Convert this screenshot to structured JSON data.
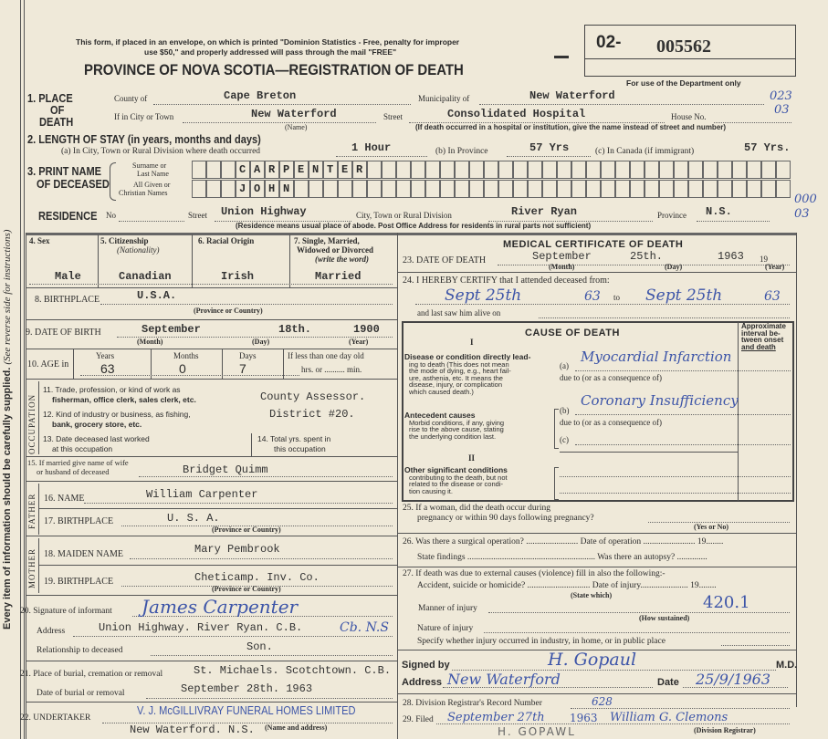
{
  "header": {
    "mail_notice_1": "This form, if placed in an envelope, on which is printed \"Dominion Statistics - Free, penalty for improper",
    "mail_notice_2": "use $50,\" and properly addressed will pass through the mail \"FREE\"",
    "title": "PROVINCE OF NOVA SCOTIA—REGISTRATION OF DEATH",
    "registration_prefix": "02-",
    "registration_number": "005562",
    "dept_only": "For use of the Department only",
    "dept_code_1a": "023",
    "dept_code_1b": "03",
    "dept_code_2a": "000",
    "dept_code_2b": "03"
  },
  "margin": {
    "instruction": "Every item of information should be carefully supplied.",
    "see_reverse": "(See reverse side for instructions)"
  },
  "place_of_death": {
    "label_num": "1. PLACE",
    "label_of": "OF",
    "label_death": "DEATH",
    "county_label": "County of",
    "county": "Cape Breton",
    "municipality_label": "Municipality of",
    "municipality": "New Waterford",
    "city_label": "If in City or Town",
    "city": "New Waterford",
    "name_note": "(Name)",
    "street_label": "Street",
    "street": "Consolidated Hospital",
    "house_label": "House No.",
    "hospital_note": "(If death occurred in a hospital or institution, give the name instead of street and number)"
  },
  "length_of_stay": {
    "label": "2. LENGTH OF STAY (in years, months and days)",
    "a_label": "(a) In City, Town or Rural Division where death occurred",
    "a_value": "1 Hour",
    "b_label": "(b) In Province",
    "b_value": "57 Yrs",
    "c_label": "(c) In Canada (if immigrant)",
    "c_value": "57 Yrs."
  },
  "name": {
    "label_1": "3. PRINT NAME",
    "label_2": "OF DECEASED",
    "surname_label_1": "Surname or",
    "surname_label_2": "Last Name",
    "given_label_1": "All Given or",
    "given_label_2": "Christian Names",
    "surname": "CARPENTER",
    "given": "JOHN"
  },
  "residence": {
    "label": "RESIDENCE",
    "no_label": "No",
    "street_label": "Street",
    "street": "Union Highway",
    "city_label": "City, Town or Rural Division",
    "city": "River Ryan",
    "province_label": "Province",
    "province": "N.S.",
    "note": "(Residence means usual place of abode. Post Office Address for residents in rural parts not sufficient)"
  },
  "personal": {
    "sex_label": "4. Sex",
    "sex": "Male",
    "citizenship_label": "5. Citizenship",
    "citizenship_sub": "(Nationality)",
    "citizenship": "Canadian",
    "racial_label": "6. Racial Origin",
    "racial": "Irish",
    "marital_label_1": "7. Single, Married,",
    "marital_label_2": "Widowed or Divorced",
    "marital_label_3": "(write the word)",
    "marital": "Married",
    "birthplace_label": "8. BIRTHPLACE",
    "birthplace": "U.S.A.",
    "birthplace_note": "(Province or Country)",
    "dob_label": "9. DATE OF BIRTH",
    "dob_month": "September",
    "dob_day": "18th.",
    "dob_year": "1900",
    "month_note": "(Month)",
    "day_note": "(Day)",
    "year_note": "(Year)",
    "age_label": "10. AGE in",
    "years_label": "Years",
    "months_label": "Months",
    "days_label": "Days",
    "less_label": "If less than one day old",
    "hrs_label": "hrs. or .......... min.",
    "age_years": "63",
    "age_months": "0",
    "age_days": "7"
  },
  "occupation": {
    "side_label": "OCCUPATION",
    "q11_1": "11. Trade, profession, or kind of work as",
    "q11_2": "fisherman, office clerk, sales clerk, etc.",
    "q11_value": "County Assessor.",
    "q12_1": "12. Kind of industry or business, as fishing,",
    "q12_2": "bank, grocery store, etc.",
    "q12_value": "District #20.",
    "q13_1": "13. Date deceased last worked",
    "q13_2": "at this occupation",
    "q14_1": "14. Total yrs. spent in",
    "q14_2": "this occupation"
  },
  "spouse": {
    "label_1": "15. If married give name of wife",
    "label_2": "or husband of deceased",
    "value": "Bridget Quimm"
  },
  "father": {
    "side_label": "FATHER",
    "name_label": "16. NAME",
    "name": "William Carpenter",
    "birthplace_label": "17. BIRTHPLACE",
    "birthplace": "U. S. A.",
    "note": "(Province or Country)"
  },
  "mother": {
    "side_label": "MOTHER",
    "name_label": "18. MAIDEN NAME",
    "name": "Mary Pembrook",
    "birthplace_label": "19. BIRTHPLACE",
    "birthplace": "Cheticamp. Inv. Co.",
    "note": "(Province or Country)"
  },
  "informant": {
    "signature_label": "20. Signature of informant",
    "signature": "James Carpenter",
    "address_label": "Address",
    "address": "Union Highway. River Ryan. C.B.",
    "address_hand": "Cb. N.S",
    "relationship_label": "Relationship to deceased",
    "relationship": "Son."
  },
  "burial": {
    "place_label": "21. Place of burial, cremation or removal",
    "place": "St. Michaels. Scotchtown. C.B.",
    "date_label": "Date of burial or removal",
    "date": "September 28th. 1963"
  },
  "undertaker": {
    "label": "22. UNDERTAKER",
    "stamp": "V. J. McGILLIVRAY FUNERAL HOMES LIMITED",
    "address": "New Waterford. N.S.",
    "note": "(Name and address)"
  },
  "medical": {
    "title": "MEDICAL CERTIFICATE OF DEATH",
    "dod_label": "23. DATE OF DEATH",
    "dod_month": "September",
    "dod_day": "25th.",
    "dod_year": "1963",
    "nineteen": "19",
    "month_note": "(Month)",
    "day_note": "(Day)",
    "year_note": "(Year)",
    "certify_label": "24. I HEREBY CERTIFY that I attended deceased from:",
    "from_date": "Sept 25th",
    "from_year": "63",
    "to_label": "to",
    "to_date": "Sept 25th",
    "to_year": "63",
    "last_saw_label": "and last saw him alive on",
    "cause_title": "CAUSE OF DEATH",
    "interval_label_1": "Approximate",
    "interval_label_2": "interval be-",
    "interval_label_3": "tween onset",
    "interval_label_4": "and death",
    "part_1": "I",
    "part_2": "II",
    "disease_1": "Disease or condition directly lead-",
    "disease_2": "ing to death (This does not mean",
    "disease_3": "the mode of dying, e.g., heart fail-",
    "disease_4": "ure, asthenia, etc. It means the",
    "disease_5": "disease, injury, or complication",
    "disease_6": "which caused death.)",
    "antecedent_1": "Antecedent causes",
    "antecedent_2": "Morbid conditions, if any, giving",
    "antecedent_3": "rise to the above cause, stating",
    "antecedent_4": "the underlying condition last.",
    "other_1": "Other significant conditions",
    "other_2": "contributing to the death, but not",
    "other_3": "related to the disease or condi-",
    "other_4": "tion causing it.",
    "a_label": "(a)",
    "a_value": "Myocardial Infarction",
    "due_to": "due to (or as a consequence of)",
    "b_label": "(b)",
    "b_value": "Coronary Insufficiency",
    "c_label": "(c)"
  },
  "questions": {
    "q25_1": "25. If a woman, did the death occur during",
    "q25_2": "pregnancy or within 90 days following pregnancy?",
    "q25_note": "(Yes or No)",
    "q26_1": "26. Was there a surgical operation? ........................ Date of operation ........................ 19........",
    "q26_2": "State findings ........................................................... Was there an autopsy? ..............",
    "q27": "27. If death was due to external causes (violence) fill in also the following:-",
    "accident": "Accident, suicide or homicide? ............................. Date of injury...................... 19........",
    "state_which": "(State which)",
    "manner": "Manner of injury",
    "code": "420.1",
    "how_sustained": "(How sustained)",
    "nature": "Nature of injury",
    "specify": "Specify whether injury occurred in industry, in home, or in public place"
  },
  "signature": {
    "signed_label": "Signed by",
    "signed": "H. Gopaul",
    "md": "M.D.",
    "address_label": "Address",
    "address": "New Waterford",
    "date_label": "Date",
    "date": "25/9/1963",
    "printed_name": "H. GOPAWL"
  },
  "registrar": {
    "record_label": "28. Division Registrar's Record Number",
    "record": "628",
    "filed_label": "29. Filed",
    "filed_date": "September 27th",
    "filed_year": "1963",
    "registrar_sig": "William G. Clemons",
    "registrar_note": "(Division Registrar)"
  },
  "colors": {
    "paper": "#efe9d9",
    "ink_blue": "#3d55a8",
    "print": "#2b2b2b"
  }
}
